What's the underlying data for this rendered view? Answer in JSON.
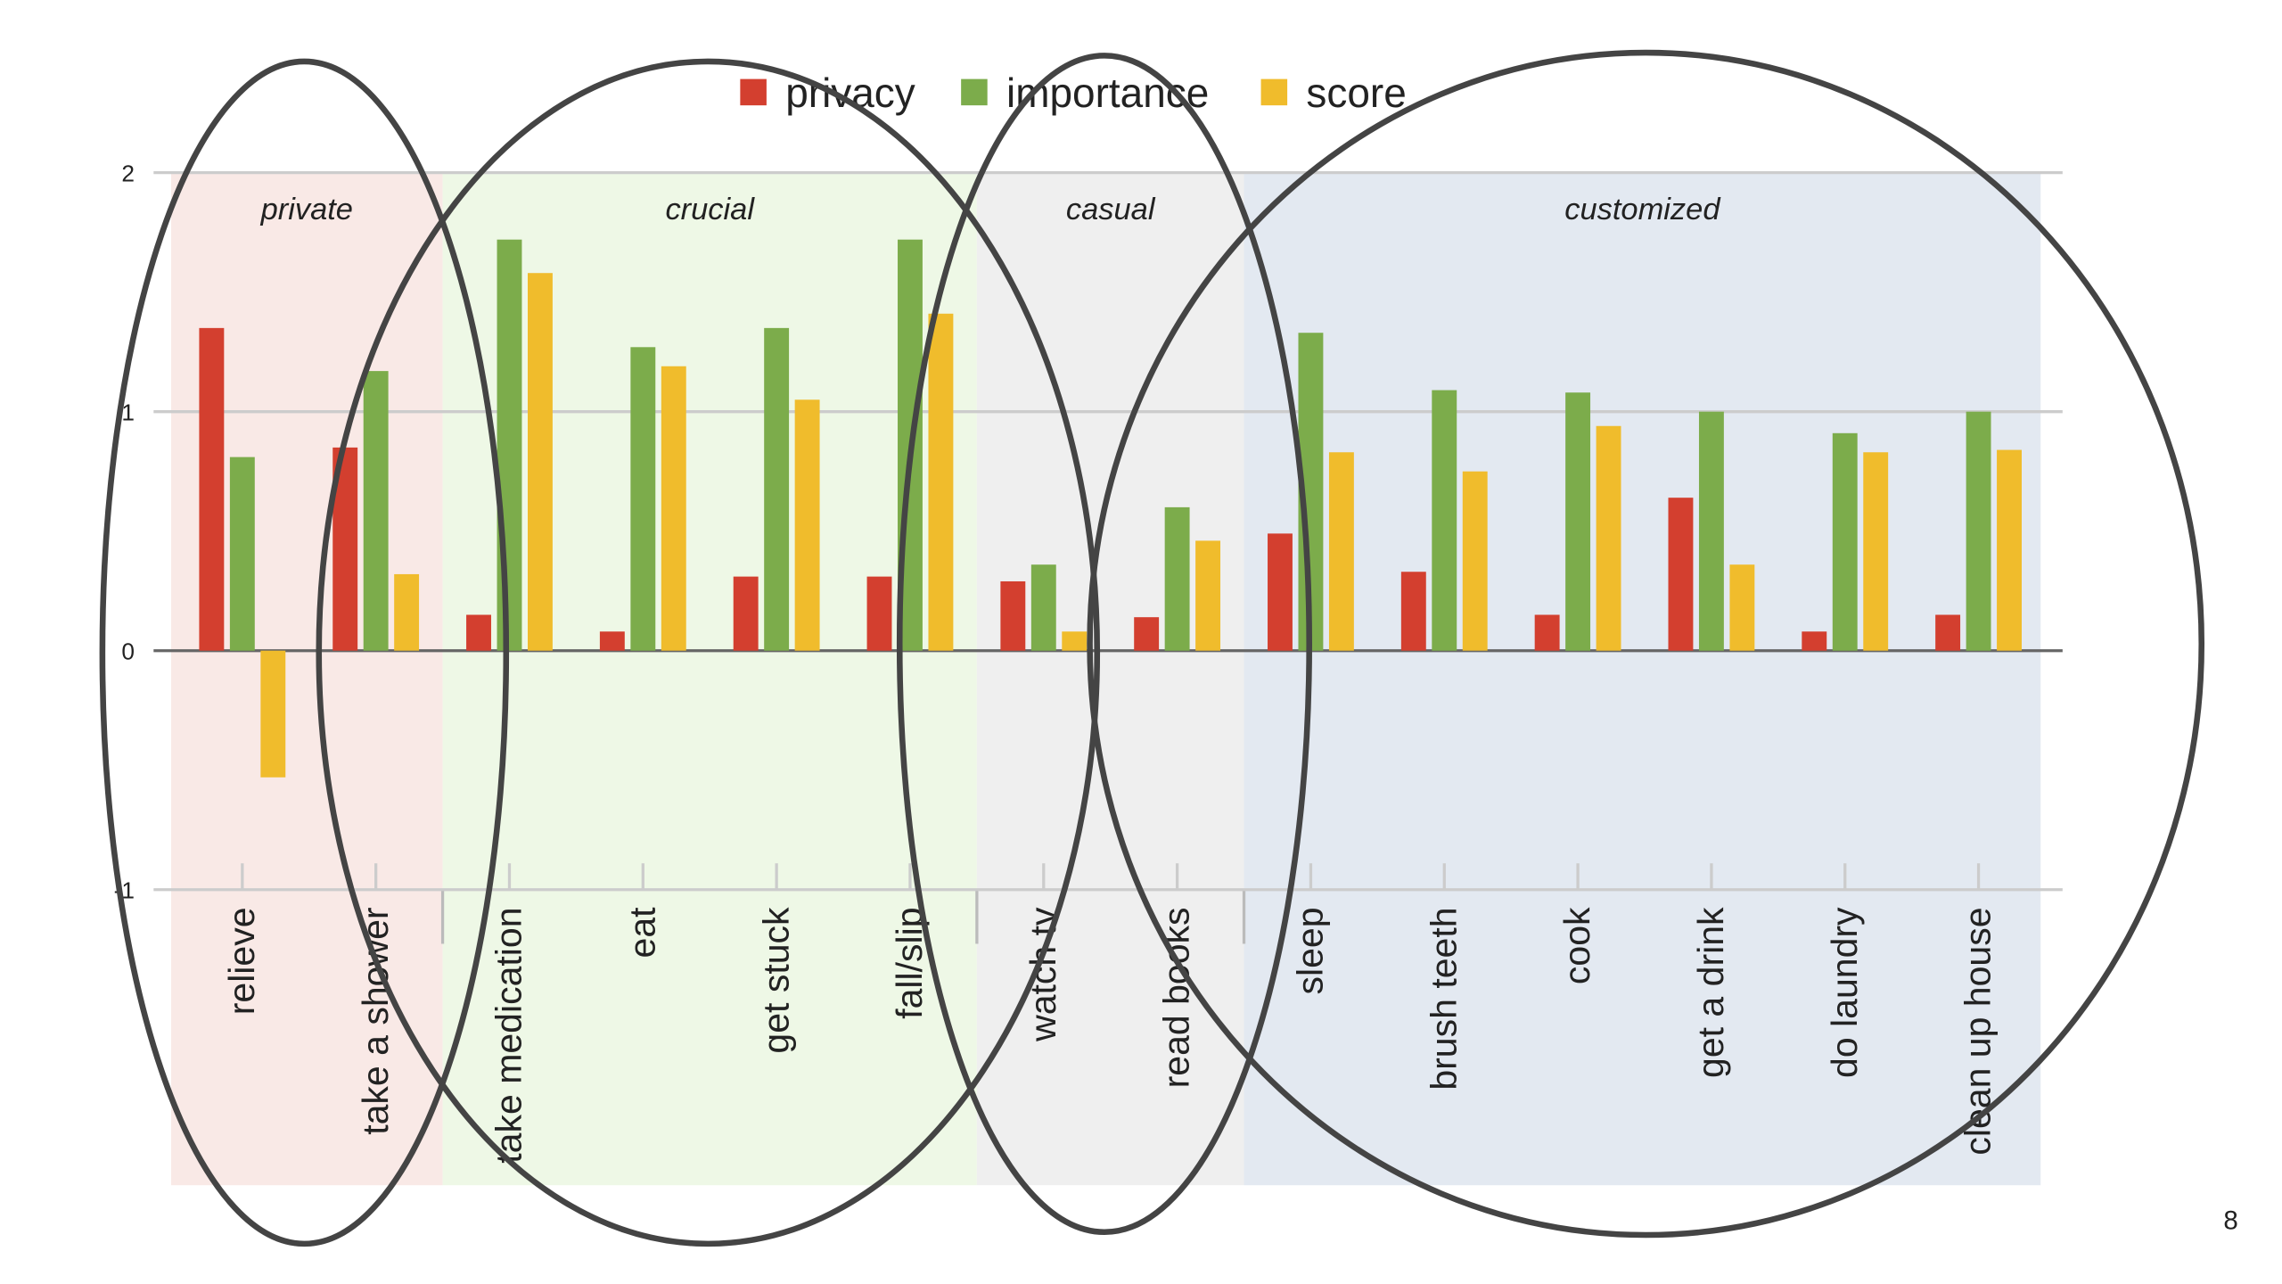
{
  "chart_data": {
    "type": "bar",
    "categories": [
      "relieve",
      "take a shower",
      "take medication",
      "eat",
      "get stuck",
      "fall/slip",
      "watch tv",
      "read books",
      "sleep",
      "brush teeth",
      "cook",
      "get a drink",
      "do laundry",
      "clean up house"
    ],
    "series": [
      {
        "name": "privacy",
        "color": "#d33f2f",
        "values": [
          1.35,
          0.85,
          0.15,
          0.08,
          0.31,
          0.31,
          0.29,
          0.14,
          0.49,
          0.33,
          0.15,
          0.64,
          0.08,
          0.15
        ]
      },
      {
        "name": "importance",
        "color": "#7cac4b",
        "values": [
          0.81,
          1.17,
          1.72,
          1.27,
          1.35,
          1.72,
          0.36,
          0.6,
          1.33,
          1.09,
          1.08,
          1.0,
          0.91,
          1.0
        ]
      },
      {
        "name": "score",
        "color": "#f0bc2c",
        "values": [
          -0.53,
          0.32,
          1.58,
          1.19,
          1.05,
          1.41,
          0.08,
          0.46,
          0.83,
          0.75,
          0.94,
          0.36,
          0.83,
          0.84
        ]
      }
    ],
    "annotations": [
      "private",
      "crucial",
      "casual",
      "customized"
    ],
    "ylim": [
      -1,
      2
    ],
    "yticks": [
      -1,
      0,
      1,
      2
    ],
    "grid": true,
    "legend": "top"
  },
  "page_number": "8"
}
